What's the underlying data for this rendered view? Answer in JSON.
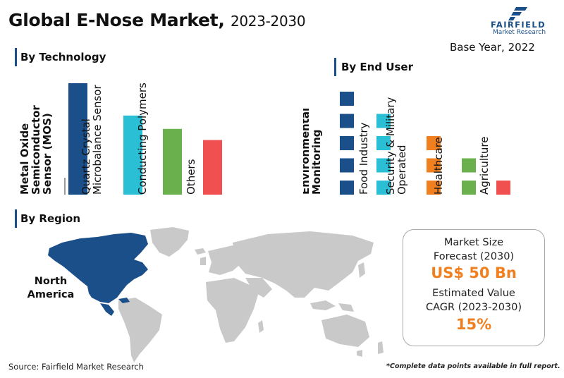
{
  "header": {
    "title_main": "Global E-Nose Market,",
    "title_years": "2023-2030",
    "base_year": "Base Year, 2022"
  },
  "logo": {
    "name": "FAIRFIELD",
    "subtitle": "Market Research",
    "color": "#1b4f8a"
  },
  "sections": {
    "technology": "By Technology",
    "end_user": "By End User",
    "region": "By Region"
  },
  "chart_data": [
    {
      "type": "bar",
      "title": "By Technology",
      "categories": [
        "Metal Oxide Semiconductor Sensor (MOS)",
        "Quartz Crystal Microbalance Sensor",
        "Conducting Polymers",
        "Others"
      ],
      "category_lines": [
        [
          "Metal Oxide",
          "Semiconductor",
          "Sensor (MOS)"
        ],
        [
          "Quartz Crystal",
          "Microbalance Sensor"
        ],
        [
          "Conducting Polymers"
        ],
        [
          "Others"
        ]
      ],
      "label_bold": [
        true,
        false,
        false,
        false
      ],
      "values": [
        100,
        71,
        59,
        49
      ],
      "colors": [
        "#1b4f8a",
        "#2bbfd6",
        "#6ab04c",
        "#f05050"
      ],
      "ylim": [
        0,
        100
      ],
      "grid": false,
      "yaxis_visible": false
    },
    {
      "type": "bar",
      "title": "By End User",
      "style": "stacked-segments",
      "categories": [
        "Environmental Monitoring",
        "Food Industry",
        "Security & Military Operated",
        "Healthcare",
        "Agriculture"
      ],
      "category_lines": [
        [
          "Environmental",
          "Monitoring"
        ],
        [
          "Food Industry"
        ],
        [
          "Security & Military",
          "Operated"
        ],
        [
          "Healthcare"
        ],
        [
          "Agriculture"
        ]
      ],
      "label_bold": [
        true,
        false,
        false,
        false,
        false
      ],
      "values": [
        5,
        4,
        3,
        2,
        1
      ],
      "colors": [
        "#1b4f8a",
        "#2bbfd6",
        "#f07f1f",
        "#6ab04c",
        "#f05050"
      ],
      "ylim": [
        0,
        5
      ],
      "grid": false,
      "yaxis_visible": false
    }
  ],
  "region": {
    "highlight_label": "North America",
    "highlight_lines": [
      "North",
      "America"
    ],
    "highlight_color": "#1b4f8a",
    "other_color": "#c9c9c9"
  },
  "kpi": {
    "market_size_label": "Market Size",
    "market_size_sub": "Forecast (2030)",
    "market_size_value": "US$ 50 Bn",
    "cagr_label": "Estimated Value",
    "cagr_sub": "CAGR (2023-2030)",
    "cagr_value": "15%",
    "value_color": "#f07f1f"
  },
  "footer": {
    "source": "Source: Fairfield Market Research",
    "note": "*Complete data points available in full report."
  }
}
